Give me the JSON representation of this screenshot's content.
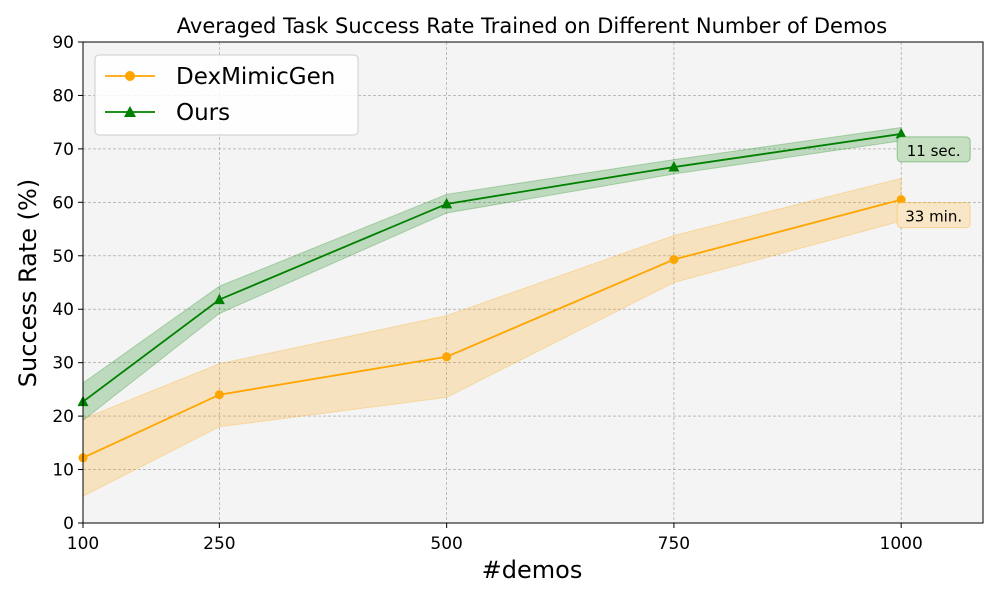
{
  "chart_data": {
    "type": "line",
    "title": "Averaged Task Success Rate Trained on Different Number of Demos",
    "xlabel": "#demos",
    "ylabel": "Success Rate (%)",
    "xlim": [
      100,
      1090
    ],
    "ylim": [
      0,
      90
    ],
    "x": [
      100,
      250,
      500,
      750,
      1000
    ],
    "x_ticks": [
      100,
      250,
      500,
      750,
      1000
    ],
    "y_ticks": [
      0,
      10,
      20,
      30,
      40,
      50,
      60,
      70,
      80,
      90
    ],
    "grid": true,
    "legend_position": "upper-left",
    "series": [
      {
        "name": "DexMimicGen",
        "color": "#ffa500",
        "marker": "circle",
        "values": [
          12.2,
          24.0,
          31.1,
          49.3,
          60.5
        ],
        "lower": [
          5.0,
          18.0,
          23.5,
          45.0,
          56.5
        ],
        "upper": [
          19.5,
          29.8,
          38.8,
          53.8,
          64.5
        ]
      },
      {
        "name": "Ours",
        "color": "#008000",
        "marker": "triangle",
        "values": [
          22.7,
          41.8,
          59.7,
          66.6,
          72.8
        ],
        "lower": [
          19.2,
          39.2,
          58.0,
          65.3,
          71.5
        ],
        "upper": [
          26.2,
          44.3,
          61.5,
          68.0,
          74.0
        ]
      }
    ],
    "annotations": [
      {
        "text": "11 sec.",
        "series": "Ours",
        "bg": "#c6dfc0"
      },
      {
        "text": "33 min.",
        "series": "DexMimicGen",
        "bg": "#f8e6c6"
      }
    ]
  }
}
